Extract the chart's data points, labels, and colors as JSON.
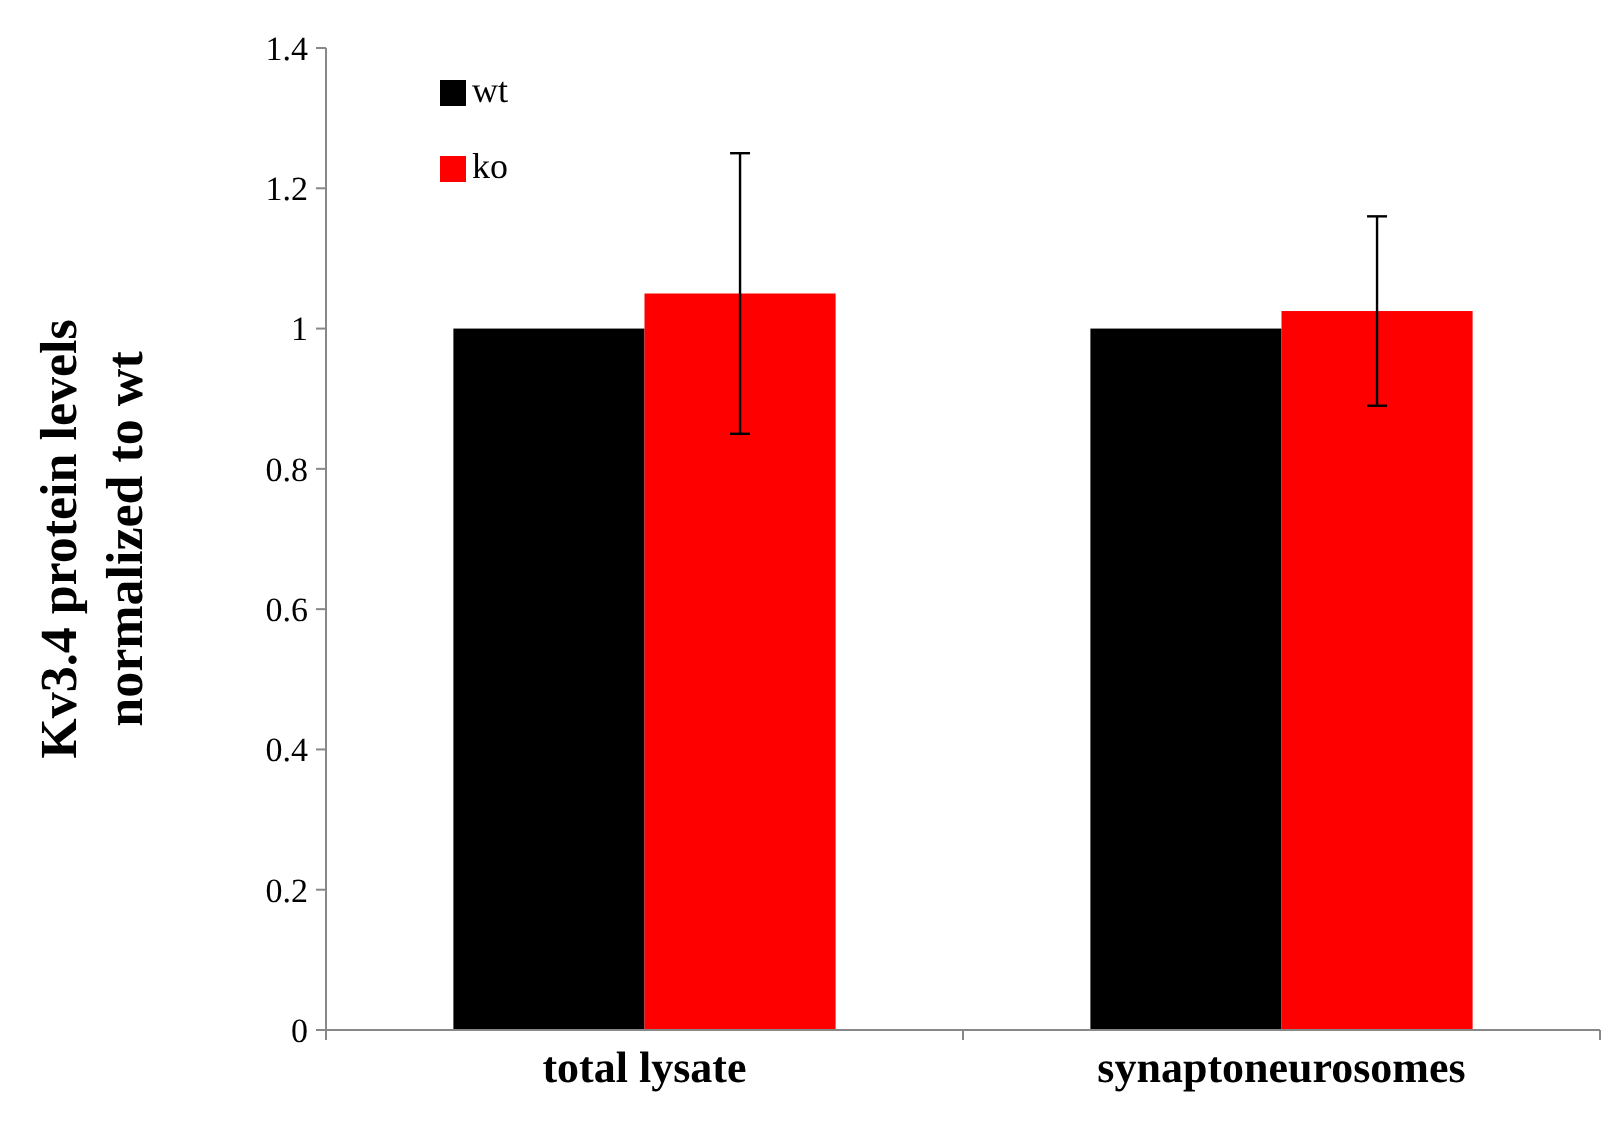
{
  "chart_data": {
    "type": "bar",
    "ylabel": "Kv3.4 protein levels normalized to wt",
    "categories": [
      "total lysate",
      "synaptoneurosomes"
    ],
    "series": [
      {
        "name": "wt",
        "color": "#000000",
        "values": [
          1,
          1
        ]
      },
      {
        "name": "ko",
        "color": "#ff0000",
        "values": [
          1.05,
          1.025
        ],
        "errors": [
          [
            0.85,
            1.25
          ],
          [
            0.89,
            1.16
          ]
        ]
      }
    ],
    "ylim": [
      0,
      1.4
    ],
    "yticks": [
      0,
      0.2,
      0.4,
      0.6,
      0.8,
      1,
      1.2,
      1.4
    ],
    "legend": "top left",
    "grid": false
  }
}
